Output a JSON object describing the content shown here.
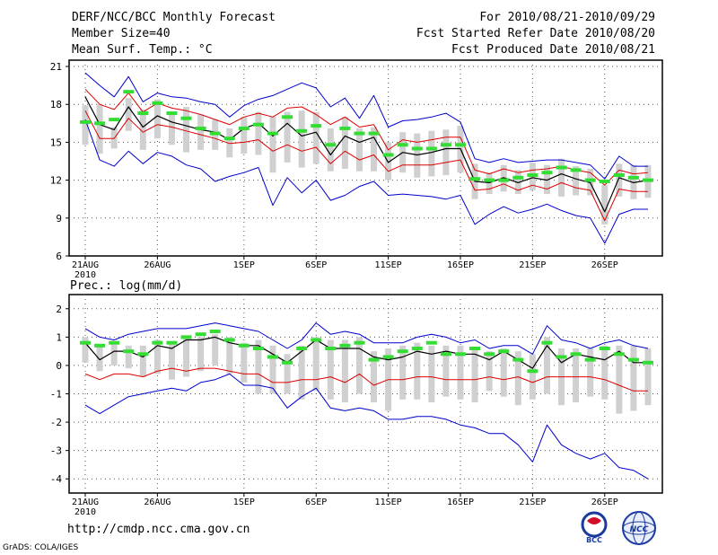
{
  "header": {
    "title": "DERF/NCC/BCC Monthly Forecast",
    "member": "Member Size=40",
    "variable": "Mean Surf. Temp.: °C",
    "period": "For 2010/08/21-2010/09/29",
    "start": "Fcst Started Refer Date 2010/08/20",
    "produced": "Fcst Produced Date 2010/08/21"
  },
  "footer": {
    "url": "http://cmdp.ncc.cma.gov.cn",
    "grads": "GrADS: COLA/IGES",
    "logo1": "BCC",
    "logo2": "NCC"
  },
  "colors": {
    "max_min": "#0000cc",
    "pct": "#dd0000",
    "mean": "#000000",
    "obs": "#33dd33",
    "box": "#d0d0d0",
    "grid": "#555555"
  },
  "chart_data": [
    {
      "type": "line",
      "title": "Mean Surf. Temp.: °C",
      "x": [
        "21AUG",
        "22AUG",
        "23AUG",
        "24AUG",
        "25AUG",
        "26AUG",
        "27AUG",
        "28AUG",
        "29AUG",
        "30AUG",
        "31AUG",
        "1SEP",
        "2SEP",
        "3SEP",
        "4SEP",
        "5SEP",
        "6SEP",
        "7SEP",
        "8SEP",
        "9SEP",
        "10SEP",
        "11SEP",
        "12SEP",
        "13SEP",
        "14SEP",
        "15SEP",
        "16SEP",
        "17SEP",
        "18SEP",
        "19SEP",
        "20SEP",
        "21SEP",
        "22SEP",
        "23SEP",
        "24SEP",
        "25SEP",
        "26SEP",
        "27SEP",
        "28SEP",
        "29SEP"
      ],
      "xticks": [
        "21AUG",
        "26AUG",
        "1SEP",
        "6SEP",
        "11SEP",
        "16SEP",
        "21SEP",
        "26SEP"
      ],
      "xtick_year": "2010",
      "ylim": [
        6,
        21.5
      ],
      "yticks": [
        6,
        9,
        12,
        15,
        18,
        21
      ],
      "series": [
        {
          "name": "max",
          "values": [
            20.5,
            19.5,
            18.6,
            20.2,
            18.2,
            18.9,
            18.6,
            18.5,
            18.2,
            18.0,
            17.0,
            17.9,
            18.4,
            18.7,
            19.2,
            19.7,
            19.3,
            17.8,
            18.5,
            16.9,
            18.7,
            16.2,
            16.7,
            16.8,
            17.0,
            17.3,
            16.6,
            13.7,
            13.4,
            13.7,
            13.4,
            13.5,
            13.6,
            13.6,
            13.4,
            13.2,
            12.1,
            13.9,
            13.1,
            13.1
          ]
        },
        {
          "name": "p90",
          "values": [
            19.2,
            18.0,
            17.6,
            18.9,
            17.4,
            18.1,
            17.7,
            17.5,
            17.2,
            16.8,
            16.4,
            17.0,
            17.3,
            17.0,
            17.7,
            17.8,
            17.2,
            16.4,
            17.0,
            16.2,
            16.4,
            14.4,
            15.2,
            15.0,
            15.2,
            15.4,
            15.4,
            12.8,
            12.5,
            12.9,
            12.6,
            12.8,
            12.9,
            13.1,
            12.8,
            12.6,
            11.6,
            12.8,
            12.5,
            12.6
          ]
        },
        {
          "name": "mean",
          "values": [
            18.6,
            16.4,
            16.0,
            17.8,
            16.2,
            17.1,
            16.6,
            16.3,
            16.0,
            15.8,
            15.2,
            16.1,
            16.5,
            15.5,
            16.5,
            15.5,
            15.8,
            14.0,
            15.5,
            15.0,
            15.4,
            13.4,
            14.2,
            14.0,
            14.2,
            14.5,
            14.5,
            11.9,
            11.8,
            12.2,
            11.8,
            12.2,
            12.0,
            12.5,
            12.1,
            11.8,
            9.5,
            12.2,
            11.8,
            12.0
          ]
        },
        {
          "name": "p10",
          "values": [
            17.5,
            15.3,
            15.3,
            16.9,
            15.8,
            16.4,
            16.2,
            15.9,
            15.6,
            15.3,
            14.9,
            15.0,
            15.2,
            14.3,
            14.8,
            14.3,
            14.6,
            13.3,
            14.3,
            13.6,
            14.0,
            12.7,
            13.2,
            13.2,
            13.2,
            13.4,
            13.6,
            11.2,
            11.3,
            11.7,
            11.2,
            11.6,
            11.3,
            11.8,
            11.4,
            11.2,
            8.8,
            11.3,
            11.1,
            11.1
          ]
        },
        {
          "name": "min",
          "values": [
            16.8,
            13.6,
            13.1,
            14.3,
            13.3,
            14.2,
            13.9,
            13.2,
            12.9,
            11.9,
            12.3,
            12.6,
            13.0,
            10.0,
            12.2,
            11.0,
            12.0,
            10.4,
            10.8,
            11.5,
            11.9,
            10.8,
            10.9,
            10.8,
            10.7,
            10.5,
            10.8,
            8.5,
            9.3,
            9.9,
            9.4,
            9.7,
            10.1,
            9.6,
            9.2,
            9.0,
            7.0,
            9.3,
            9.7,
            9.7
          ]
        },
        {
          "name": "box_top",
          "values": [
            17.9,
            18.0,
            16.2,
            18.5,
            17.6,
            18.4,
            17.2,
            17.8,
            17.2,
            16.8,
            16.1,
            17.0,
            17.4,
            17.0,
            17.4,
            17.5,
            17.4,
            16.1,
            17.0,
            16.1,
            16.2,
            15.0,
            15.8,
            15.7,
            15.9,
            16.0,
            16.3,
            13.3,
            12.6,
            13.2,
            12.8,
            13.4,
            13.2,
            13.7,
            13.1,
            12.9,
            11.6,
            13.3,
            13.2,
            13.2
          ]
        },
        {
          "name": "box_bottom",
          "values": [
            14.8,
            14.1,
            14.5,
            15.9,
            14.4,
            15.3,
            14.8,
            14.2,
            14.4,
            14.4,
            13.8,
            14.1,
            14.0,
            12.6,
            13.4,
            13.0,
            13.3,
            12.7,
            12.9,
            12.7,
            12.7,
            12.0,
            12.6,
            12.2,
            12.3,
            12.4,
            12.6,
            10.5,
            10.9,
            11.1,
            10.9,
            11.2,
            10.9,
            10.7,
            10.8,
            10.8,
            8.5,
            10.7,
            10.5,
            10.6
          ]
        },
        {
          "name": "obs",
          "values": [
            16.6,
            16.5,
            16.8,
            19.0,
            17.3,
            18.1,
            17.3,
            16.9,
            16.1,
            15.7,
            15.3,
            16.1,
            16.4,
            15.7,
            17.0,
            15.9,
            16.3,
            14.8,
            16.1,
            15.7,
            15.7,
            14.0,
            14.8,
            14.5,
            14.5,
            14.8,
            14.8,
            12.1,
            12.0,
            12.0,
            12.2,
            12.4,
            12.6,
            13.0,
            12.8,
            12.0,
            11.9,
            12.4,
            12.2,
            12.0
          ]
        }
      ]
    },
    {
      "type": "line",
      "title": "Prec.: log(mm/d)",
      "x": [
        "21AUG",
        "22AUG",
        "23AUG",
        "24AUG",
        "25AUG",
        "26AUG",
        "27AUG",
        "28AUG",
        "29AUG",
        "30AUG",
        "31AUG",
        "1SEP",
        "2SEP",
        "3SEP",
        "4SEP",
        "5SEP",
        "6SEP",
        "7SEP",
        "8SEP",
        "9SEP",
        "10SEP",
        "11SEP",
        "12SEP",
        "13SEP",
        "14SEP",
        "15SEP",
        "16SEP",
        "17SEP",
        "18SEP",
        "19SEP",
        "20SEP",
        "21SEP",
        "22SEP",
        "23SEP",
        "24SEP",
        "25SEP",
        "26SEP",
        "27SEP",
        "28SEP",
        "29SEP"
      ],
      "xticks": [
        "21AUG",
        "26AUG",
        "1SEP",
        "6SEP",
        "11SEP",
        "16SEP",
        "21SEP",
        "26SEP"
      ],
      "xtick_year": "2010",
      "ylim": [
        -4.5,
        2.5
      ],
      "yticks": [
        -4,
        -3,
        -2,
        -1,
        0,
        1,
        2
      ],
      "series": [
        {
          "name": "max",
          "values": [
            1.3,
            1.0,
            0.9,
            1.1,
            1.2,
            1.3,
            1.3,
            1.3,
            1.4,
            1.5,
            1.4,
            1.3,
            1.2,
            0.9,
            0.6,
            0.9,
            1.5,
            1.1,
            1.2,
            1.1,
            0.8,
            0.8,
            0.8,
            1.0,
            1.1,
            1.0,
            0.8,
            0.9,
            0.6,
            0.7,
            0.7,
            0.4,
            1.4,
            0.9,
            0.8,
            0.6,
            0.8,
            0.9,
            0.7,
            0.6
          ]
        },
        {
          "name": "mean",
          "values": [
            0.8,
            0.2,
            0.5,
            0.5,
            0.3,
            0.7,
            0.6,
            0.9,
            0.9,
            1.0,
            0.8,
            0.7,
            0.7,
            0.4,
            0.1,
            0.5,
            0.9,
            0.6,
            0.6,
            0.6,
            0.3,
            0.2,
            0.3,
            0.5,
            0.4,
            0.5,
            0.4,
            0.4,
            0.2,
            0.5,
            0.2,
            -0.1,
            0.7,
            0.1,
            0.4,
            0.3,
            0.2,
            0.5,
            0.1,
            0.1
          ]
        },
        {
          "name": "p10",
          "values": [
            -0.3,
            -0.5,
            -0.3,
            -0.3,
            -0.4,
            -0.2,
            -0.1,
            -0.2,
            -0.1,
            -0.1,
            -0.2,
            -0.3,
            -0.3,
            -0.6,
            -0.6,
            -0.5,
            -0.5,
            -0.4,
            -0.6,
            -0.3,
            -0.7,
            -0.5,
            -0.5,
            -0.4,
            -0.4,
            -0.5,
            -0.5,
            -0.5,
            -0.4,
            -0.5,
            -0.4,
            -0.6,
            -0.4,
            -0.4,
            -0.4,
            -0.4,
            -0.5,
            -0.7,
            -0.9,
            -0.9
          ]
        },
        {
          "name": "min",
          "values": [
            -1.4,
            -1.7,
            -1.4,
            -1.1,
            -1.0,
            -0.9,
            -0.8,
            -0.9,
            -0.6,
            -0.5,
            -0.3,
            -0.7,
            -0.7,
            -0.8,
            -1.5,
            -1.1,
            -0.8,
            -1.5,
            -1.6,
            -1.5,
            -1.6,
            -1.9,
            -1.9,
            -1.8,
            -1.8,
            -1.9,
            -2.1,
            -2.2,
            -2.4,
            -2.4,
            -2.8,
            -3.4,
            -2.1,
            -2.8,
            -3.1,
            -3.3,
            -3.1,
            -3.6,
            -3.7,
            -4.0
          ]
        },
        {
          "name": "box_top",
          "values": [
            1.0,
            0.7,
            0.8,
            0.7,
            0.7,
            0.9,
            0.8,
            1.0,
            1.0,
            1.1,
            1.0,
            0.8,
            0.9,
            0.7,
            0.4,
            0.7,
            1.0,
            0.9,
            0.9,
            1.0,
            0.5,
            0.6,
            0.7,
            0.8,
            0.7,
            0.7,
            0.7,
            0.6,
            0.5,
            0.6,
            0.5,
            0.4,
            1.0,
            0.6,
            0.6,
            0.6,
            0.7,
            0.7,
            0.7,
            0.6
          ]
        },
        {
          "name": "box_bottom",
          "values": [
            0.1,
            -0.2,
            0.0,
            -0.1,
            -0.4,
            -0.3,
            -0.5,
            -0.4,
            -0.2,
            0.0,
            -0.3,
            -0.6,
            -1.0,
            -1.0,
            -1.0,
            -1.2,
            -0.9,
            -1.2,
            -1.3,
            -1.0,
            -1.3,
            -1.6,
            -1.2,
            -1.2,
            -1.3,
            -1.1,
            -1.2,
            -1.3,
            -0.9,
            -1.1,
            -1.4,
            -1.2,
            -1.0,
            -1.4,
            -1.3,
            -1.1,
            -1.2,
            -1.7,
            -1.6,
            -1.4
          ]
        },
        {
          "name": "obs",
          "values": [
            0.8,
            0.7,
            0.8,
            0.5,
            0.4,
            0.8,
            0.8,
            1.0,
            1.1,
            1.2,
            0.9,
            0.7,
            0.6,
            0.3,
            0.1,
            0.6,
            0.9,
            0.6,
            0.7,
            0.8,
            0.2,
            0.3,
            0.5,
            0.6,
            0.8,
            0.4,
            0.4,
            0.6,
            0.4,
            0.5,
            0.2,
            -0.2,
            0.8,
            0.3,
            0.4,
            0.2,
            0.6,
            0.4,
            0.2,
            0.1
          ]
        }
      ]
    }
  ]
}
